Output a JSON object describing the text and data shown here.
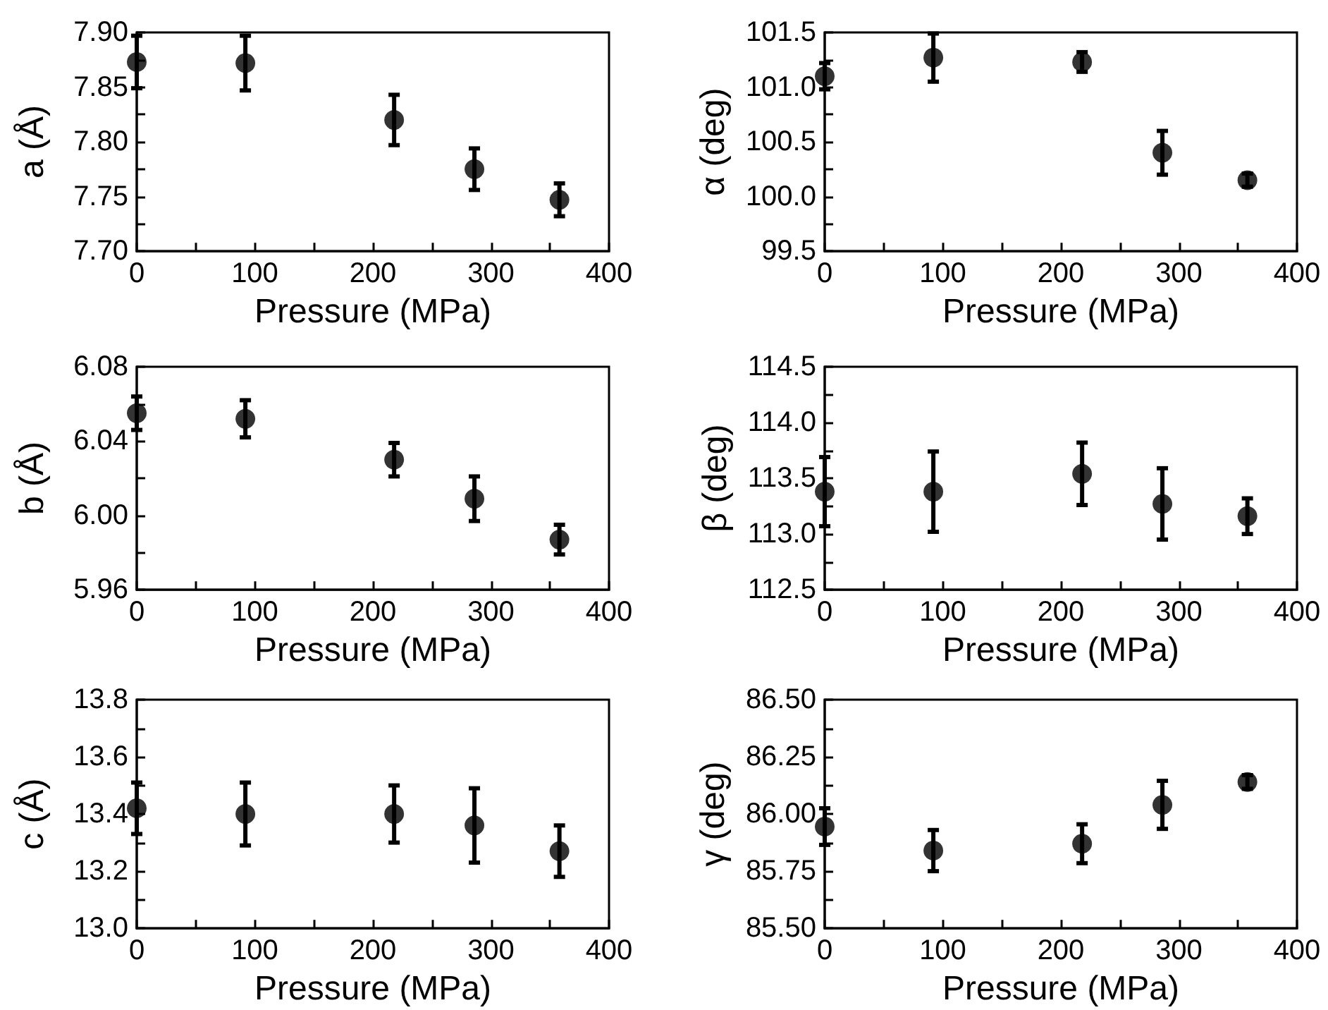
{
  "chart_data": [
    {
      "type": "scatter",
      "xlabel": "Pressure (MPa)",
      "ylabel": "a (Å)",
      "marker": "circle",
      "x": [
        0,
        92,
        218,
        286,
        358
      ],
      "series": [
        {
          "color": "#000000",
          "values": [
            7.873,
            7.872,
            7.82,
            7.775,
            7.747
          ],
          "errors": [
            0.024,
            0.025,
            0.023,
            0.019,
            0.015
          ]
        }
      ],
      "xlim": [
        0,
        400
      ],
      "xticks": [
        0,
        {
          "value": 50,
          "label": null
        },
        100,
        {
          "value": 150,
          "label": null
        },
        200,
        {
          "value": 250,
          "label": null
        },
        300,
        {
          "value": 350,
          "label": null
        },
        400
      ],
      "ylim": [
        7.7,
        7.9
      ],
      "yticks": [
        {
          "value": 7.7,
          "label": "7.70"
        },
        {
          "value": 7.725,
          "label": null
        },
        {
          "value": 7.75,
          "label": "7.75"
        },
        {
          "value": 7.775,
          "label": null
        },
        {
          "value": 7.8,
          "label": "7.80"
        },
        {
          "value": 7.825,
          "label": null
        },
        {
          "value": 7.85,
          "label": "7.85"
        },
        {
          "value": 7.875,
          "label": null
        },
        {
          "value": 7.9,
          "label": "7.90"
        }
      ]
    },
    {
      "type": "scatter",
      "xlabel": "Pressure (MPa)",
      "ylabel": "α (deg)",
      "marker": "circle",
      "x": [
        0,
        92,
        218,
        286,
        358
      ],
      "series": [
        {
          "color": "#000000",
          "values": [
            101.1,
            101.27,
            101.23,
            100.4,
            100.15
          ],
          "errors": [
            0.12,
            0.22,
            0.09,
            0.2,
            0.06
          ]
        }
      ],
      "xlim": [
        0,
        400
      ],
      "xticks": [
        0,
        {
          "value": 50,
          "label": null
        },
        100,
        {
          "value": 150,
          "label": null
        },
        200,
        {
          "value": 250,
          "label": null
        },
        300,
        {
          "value": 350,
          "label": null
        },
        400
      ],
      "ylim": [
        99.5,
        101.5
      ],
      "yticks": [
        99.5,
        {
          "value": 99.75,
          "label": null
        },
        {
          "value": 100,
          "label": "100.0"
        },
        {
          "value": 100.25,
          "label": null
        },
        100.5,
        {
          "value": 100.75,
          "label": null
        },
        {
          "value": 101,
          "label": "101.0"
        },
        {
          "value": 101.25,
          "label": null
        },
        101.5
      ]
    },
    {
      "type": "scatter",
      "xlabel": "Pressure (MPa)",
      "ylabel": "b (Å)",
      "marker": "circle",
      "x": [
        0,
        92,
        218,
        286,
        358
      ],
      "series": [
        {
          "color": "#000000",
          "values": [
            6.055,
            6.052,
            6.03,
            6.009,
            5.987
          ],
          "errors": [
            0.009,
            0.01,
            0.009,
            0.012,
            0.008
          ]
        }
      ],
      "xlim": [
        0,
        400
      ],
      "xticks": [
        0,
        {
          "value": 50,
          "label": null
        },
        100,
        {
          "value": 150,
          "label": null
        },
        200,
        {
          "value": 250,
          "label": null
        },
        300,
        {
          "value": 350,
          "label": null
        },
        400
      ],
      "ylim": [
        5.96,
        6.08
      ],
      "yticks": [
        5.96,
        {
          "value": 5.98,
          "label": null
        },
        {
          "value": 6.0,
          "label": "6.00"
        },
        {
          "value": 6.02,
          "label": null
        },
        6.04,
        {
          "value": 6.06,
          "label": null
        },
        6.08
      ]
    },
    {
      "type": "scatter",
      "xlabel": "Pressure (MPa)",
      "ylabel": "β (deg)",
      "marker": "circle",
      "x": [
        0,
        92,
        218,
        286,
        358
      ],
      "series": [
        {
          "color": "#000000",
          "values": [
            113.38,
            113.38,
            113.54,
            113.27,
            113.16
          ],
          "errors": [
            0.31,
            0.36,
            0.28,
            0.32,
            0.16
          ]
        }
      ],
      "xlim": [
        0,
        400
      ],
      "xticks": [
        0,
        {
          "value": 50,
          "label": null
        },
        100,
        {
          "value": 150,
          "label": null
        },
        200,
        {
          "value": 250,
          "label": null
        },
        300,
        {
          "value": 350,
          "label": null
        },
        400
      ],
      "ylim": [
        112.5,
        114.5
      ],
      "yticks": [
        112.5,
        {
          "value": 112.75,
          "label": null
        },
        {
          "value": 113,
          "label": "113.0"
        },
        {
          "value": 113.25,
          "label": null
        },
        113.5,
        {
          "value": 113.75,
          "label": null
        },
        {
          "value": 114,
          "label": "114.0"
        },
        {
          "value": 114.25,
          "label": null
        },
        114.5
      ]
    },
    {
      "type": "scatter",
      "xlabel": "Pressure (MPa)",
      "ylabel": "c (Å)",
      "marker": "circle",
      "x": [
        0,
        92,
        218,
        286,
        358
      ],
      "series": [
        {
          "color": "#000000",
          "values": [
            13.42,
            13.4,
            13.4,
            13.36,
            13.27
          ],
          "errors": [
            0.09,
            0.11,
            0.1,
            0.13,
            0.09
          ]
        }
      ],
      "xlim": [
        0,
        400
      ],
      "xticks": [
        0,
        {
          "value": 50,
          "label": null
        },
        100,
        {
          "value": 150,
          "label": null
        },
        200,
        {
          "value": 250,
          "label": null
        },
        300,
        {
          "value": 350,
          "label": null
        },
        400
      ],
      "ylim": [
        13.0,
        13.8
      ],
      "yticks": [
        {
          "value": 13.0,
          "label": "13.0"
        },
        {
          "value": 13.1,
          "label": null
        },
        13.2,
        {
          "value": 13.3,
          "label": null
        },
        13.4,
        {
          "value": 13.5,
          "label": null
        },
        13.6,
        {
          "value": 13.7,
          "label": null
        },
        13.8
      ]
    },
    {
      "type": "scatter",
      "xlabel": "Pressure (MPa)",
      "ylabel": "γ (deg)",
      "marker": "circle",
      "x": [
        0,
        92,
        218,
        286,
        358
      ],
      "series": [
        {
          "color": "#000000",
          "values": [
            85.945,
            85.84,
            85.87,
            86.04,
            86.14
          ],
          "errors": [
            0.08,
            0.09,
            0.085,
            0.105,
            0.03
          ]
        }
      ],
      "xlim": [
        0,
        400
      ],
      "xticks": [
        0,
        {
          "value": 50,
          "label": null
        },
        100,
        {
          "value": 150,
          "label": null
        },
        200,
        {
          "value": 250,
          "label": null
        },
        300,
        {
          "value": 350,
          "label": null
        },
        400
      ],
      "ylim": [
        85.5,
        86.5
      ],
      "yticks": [
        {
          "value": 85.5,
          "label": "85.50"
        },
        {
          "value": 85.625,
          "label": null
        },
        85.75,
        {
          "value": 85.875,
          "label": null
        },
        {
          "value": 86,
          "label": "86.00"
        },
        {
          "value": 86.125,
          "label": null
        },
        86.25,
        {
          "value": 86.375,
          "label": null
        },
        {
          "value": 86.5,
          "label": "86.50"
        }
      ]
    }
  ]
}
